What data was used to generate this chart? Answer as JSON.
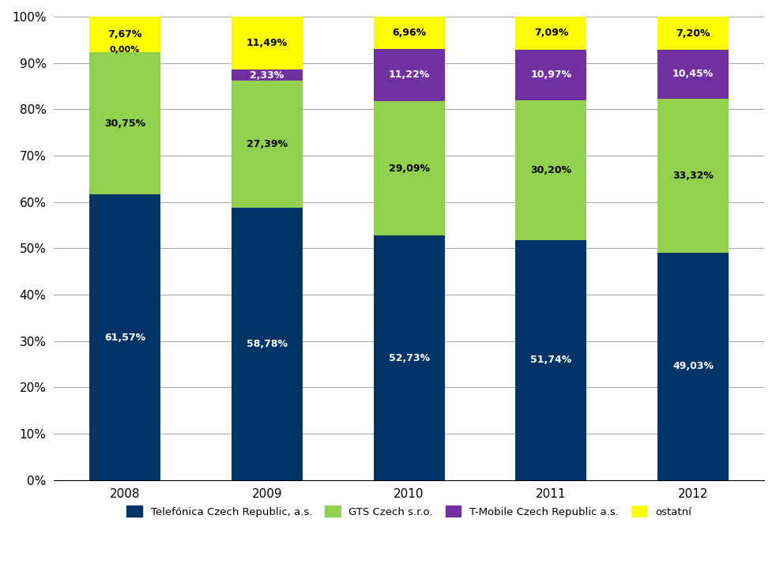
{
  "years": [
    "2008",
    "2009",
    "2010",
    "2011",
    "2012"
  ],
  "telefonica": [
    61.57,
    58.78,
    52.73,
    51.74,
    49.03
  ],
  "gts": [
    30.75,
    27.39,
    29.09,
    30.2,
    33.32
  ],
  "tmobile": [
    0.0,
    2.33,
    11.22,
    10.97,
    10.45
  ],
  "ostatni": [
    7.67,
    11.49,
    6.96,
    7.09,
    7.2
  ],
  "telefonica_labels": [
    "61,57%",
    "58,78%",
    "52,73%",
    "51,74%",
    "49,03%"
  ],
  "gts_labels": [
    "30,75%",
    "27,39%",
    "29,09%",
    "30,20%",
    "33,32%"
  ],
  "tmobile_labels": [
    "0,00%",
    "2,33%",
    "11,22%",
    "10,97%",
    "10,45%"
  ],
  "ostatni_labels": [
    "7,67%",
    "11,49%",
    "6,96%",
    "7,09%",
    "7,20%"
  ],
  "color_telefonica": "#003366",
  "color_gts": "#92D050",
  "color_tmobile": "#7030A0",
  "color_ostatni": "#FFFF00",
  "legend_labels": [
    "Telefónica Czech Republic, a.s.",
    "GTS Czech s.r.o.",
    "T-Mobile Czech Republic a.s.",
    "ostatní"
  ],
  "background_color": "#FFFFFF",
  "ylim": [
    0,
    100
  ],
  "ytick_labels": [
    "0%",
    "10%",
    "20%",
    "30%",
    "40%",
    "50%",
    "60%",
    "70%",
    "80%",
    "90%",
    "100%"
  ],
  "bar_width": 0.5
}
